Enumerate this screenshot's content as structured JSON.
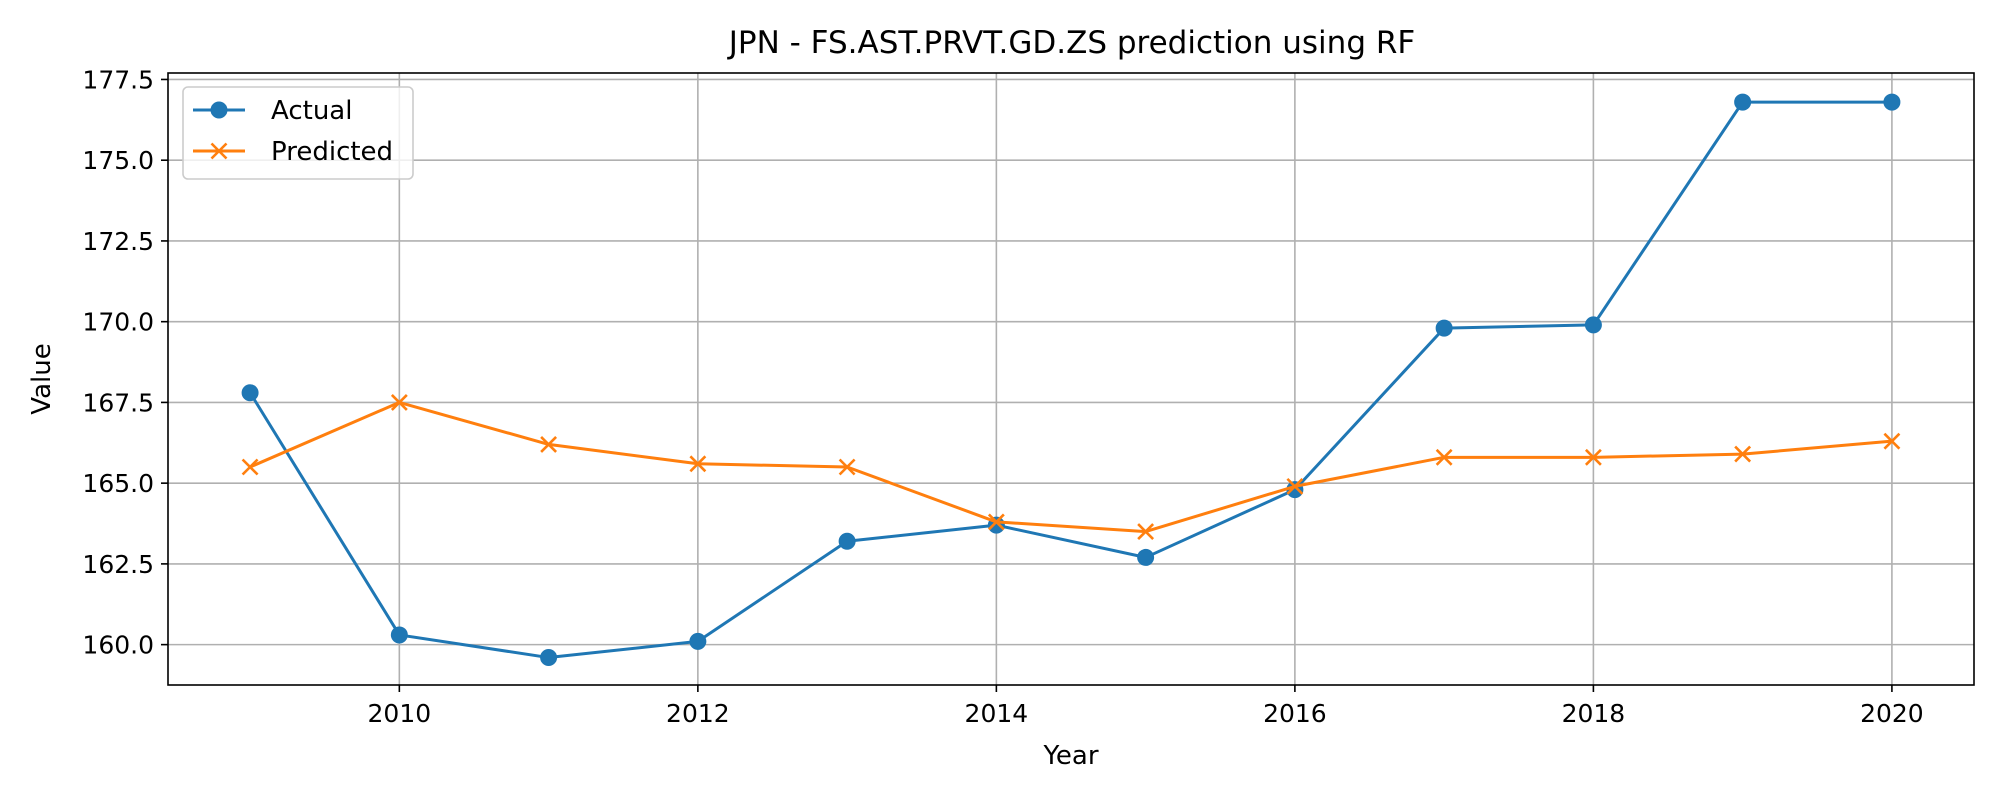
{
  "chart_data": {
    "type": "line",
    "title": "JPN - FS.AST.PRVT.GD.ZS prediction using RF",
    "xlabel": "Year",
    "ylabel": "Value",
    "x": [
      2009,
      2010,
      2011,
      2012,
      2013,
      2014,
      2015,
      2016,
      2017,
      2018,
      2019,
      2020
    ],
    "xlim": [
      2008.45,
      2020.55
    ],
    "ylim": [
      158.75,
      177.7
    ],
    "xticks": [
      2010,
      2012,
      2014,
      2016,
      2018,
      2020
    ],
    "xtick_labels": [
      "2010",
      "2012",
      "2014",
      "2016",
      "2018",
      "2020"
    ],
    "yticks": [
      160.0,
      162.5,
      165.0,
      167.5,
      170.0,
      172.5,
      175.0,
      177.5
    ],
    "ytick_labels": [
      "160.0",
      "162.5",
      "165.0",
      "167.5",
      "170.0",
      "172.5",
      "175.0",
      "177.5"
    ],
    "grid": true,
    "legend_position": "upper-left",
    "series": [
      {
        "name": "Actual",
        "marker": "circle",
        "color": "#1f77b4",
        "values": [
          167.8,
          160.3,
          159.6,
          160.1,
          163.2,
          163.7,
          162.7,
          164.8,
          169.8,
          169.9,
          176.8,
          176.8
        ]
      },
      {
        "name": "Predicted",
        "marker": "x",
        "color": "#ff7f0e",
        "values": [
          165.5,
          167.5,
          166.2,
          165.6,
          165.5,
          163.8,
          163.5,
          164.9,
          165.8,
          165.8,
          165.9,
          166.3
        ]
      }
    ]
  }
}
